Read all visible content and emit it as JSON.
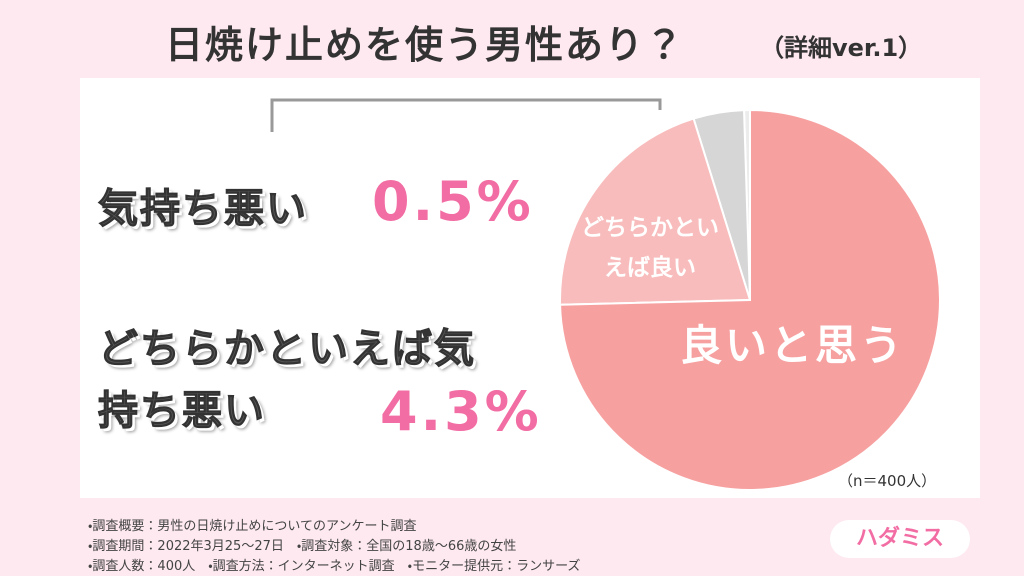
{
  "chart_data": {
    "type": "pie",
    "title": "日焼け止めを使う男性あり？",
    "subtitle": "（詳細ver.1）",
    "categories": [
      "良いと思う",
      "どちらかといえば良い",
      "どちらかといえば気持ち悪い",
      "気持ち悪い"
    ],
    "values": [
      74.6,
      20.6,
      4.3,
      0.5
    ],
    "value_labels": [
      null,
      null,
      "4.3%",
      "0.5%"
    ],
    "colors": [
      "#f7a0a0",
      "#f8bcbc",
      "#d6d6d6",
      "#ececec"
    ],
    "sample_note": "（n＝400人）",
    "footnotes": [
      "・調査概要：男性の日焼け止めについてのアンケート調査",
      "・調査期間：2022年3月25～27日　・調査対象：全国の18歳～66歳の女性",
      "・調査人数：400人　・調査方法：インターネット調査　・モニター提供元：ランサーズ"
    ],
    "brand": "ハダミス"
  }
}
